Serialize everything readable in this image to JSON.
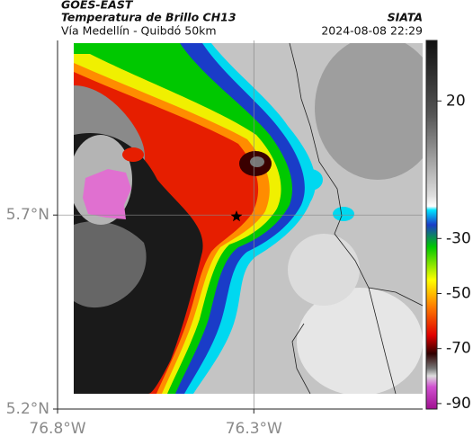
{
  "header": {
    "title": "GOES-EAST",
    "subtitle": "Temperatura de Brillo CH13",
    "route": "Vía Medellín - Quibdó 50km",
    "source": "SIATA",
    "datetime": "2024-08-08 22:29"
  },
  "map": {
    "xlim": [
      -76.8,
      -75.87
    ],
    "ylim": [
      5.2,
      6.15
    ],
    "xticks": [
      {
        "value": -76.8,
        "label": "76.8°W"
      },
      {
        "value": -76.3,
        "label": "76.3°W"
      }
    ],
    "yticks": [
      {
        "value": 5.2,
        "label": "5.2°N"
      },
      {
        "value": 5.7,
        "label": "5.7°N"
      }
    ],
    "grid": true,
    "colorbar": {
      "lim": [
        -92,
        42
      ],
      "ticks": [
        20,
        -30,
        -50,
        -70,
        -90
      ]
    }
  }
}
